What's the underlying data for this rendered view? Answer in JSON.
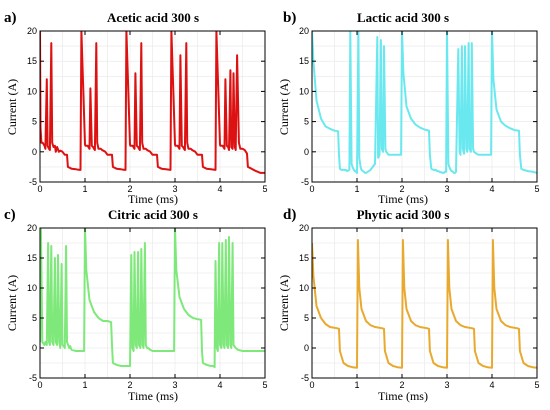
{
  "chart_data": [
    {
      "panel_label": "a)",
      "title": "Acetic acid 300 s",
      "type": "line",
      "color": "#dd1111",
      "xlabel": "Time (ms)",
      "ylabel": "Current (A)",
      "xlim": [
        0,
        5
      ],
      "ylim": [
        -5,
        20
      ],
      "xticks": [
        "0",
        "1",
        "2",
        "3",
        "4",
        "5"
      ],
      "yticks": [
        "-5",
        "0",
        "5",
        "10",
        "15",
        "20"
      ],
      "grid": true,
      "series": [
        {
          "x": [
            0.0,
            0.01,
            0.03,
            0.06,
            0.1,
            0.12,
            0.15,
            0.17,
            0.2,
            0.22,
            0.25,
            0.27,
            0.3,
            0.33,
            0.35,
            0.38,
            0.42,
            0.45,
            0.5,
            0.55,
            0.6,
            0.62,
            0.7,
            0.8,
            0.88,
            0.9,
            0.92,
            1.0,
            1.01,
            1.03,
            1.06,
            1.1,
            1.12,
            1.15,
            1.18,
            1.2,
            1.22,
            1.25,
            1.27,
            1.3,
            1.35,
            1.38,
            1.45,
            1.5,
            1.55,
            1.6,
            1.62,
            1.7,
            1.8,
            1.88,
            1.9,
            1.92,
            2.0,
            2.01,
            2.03,
            2.06,
            2.1,
            2.12,
            2.15,
            2.18,
            2.2,
            2.22,
            2.25,
            2.27,
            2.3,
            2.35,
            2.38,
            2.45,
            2.5,
            2.55,
            2.6,
            2.62,
            2.7,
            2.8,
            2.9,
            2.92,
            3.0,
            3.01,
            3.03,
            3.06,
            3.1,
            3.12,
            3.15,
            3.18,
            3.2,
            3.22,
            3.25,
            3.27,
            3.3,
            3.35,
            3.38,
            3.45,
            3.5,
            3.55,
            3.6,
            3.62,
            3.7,
            3.8,
            3.9,
            3.92,
            4.0,
            4.01,
            4.03,
            4.06,
            4.1,
            4.12,
            4.15,
            4.18,
            4.2,
            4.23,
            4.25,
            4.28,
            4.3,
            4.33,
            4.35,
            4.38,
            4.42,
            4.45,
            4.5,
            4.55,
            4.6,
            4.62,
            4.7,
            4.8,
            4.9,
            5.0
          ],
          "y": [
            20,
            4,
            1.5,
            1.5,
            1,
            0.5,
            12,
            1,
            0.5,
            0.3,
            18,
            1.5,
            0.8,
            1,
            0,
            0.8,
            0,
            0.2,
            0,
            -0.5,
            -0.5,
            -2.5,
            -2.8,
            -2.9,
            -3,
            -3,
            20,
            1.2,
            1,
            1,
            1,
            0.5,
            10.5,
            1,
            0.8,
            0.5,
            0.3,
            18,
            1.5,
            0.5,
            0.5,
            0.3,
            0,
            -0.5,
            -0.5,
            -0.5,
            -2.5,
            -2.8,
            -2.9,
            -3,
            -3,
            20,
            1.2,
            1,
            1,
            1,
            0.5,
            13,
            1,
            0.8,
            0.5,
            0.3,
            18,
            1.5,
            0.5,
            0.5,
            0.3,
            0,
            -0.5,
            -0.5,
            -0.5,
            -2.5,
            -2.8,
            -2.9,
            -3,
            20,
            1.2,
            1,
            1,
            1,
            0.5,
            16,
            1,
            0.8,
            0.5,
            0.3,
            18,
            1.5,
            0.5,
            0.5,
            0.3,
            0,
            -0.5,
            -0.5,
            -0.5,
            -2.5,
            -2.8,
            -2.9,
            -3,
            20,
            1.2,
            1,
            1,
            1,
            0.5,
            12,
            1,
            0.8,
            0.3,
            13.5,
            0.8,
            0.5,
            13,
            0.8,
            0.3,
            16,
            1.5,
            0.5,
            0.5,
            0.3,
            -0.3,
            -2.5,
            -2.8,
            -3.2,
            -3.5,
            -3.5
          ]
        }
      ]
    },
    {
      "panel_label": "b)",
      "title": "Lactic acid 300 s",
      "type": "line",
      "color": "#6ae8ef",
      "xlabel": "Time (ms)",
      "ylabel": "Current (A)",
      "xlim": [
        0,
        5
      ],
      "ylim": [
        -5,
        20
      ],
      "xticks": [
        "0",
        "1",
        "2",
        "3",
        "4",
        "5"
      ],
      "yticks": [
        "-5",
        "0",
        "5",
        "10",
        "15",
        "20"
      ],
      "grid": true,
      "series": [
        {
          "x": [
            0.0,
            0.03,
            0.1,
            0.2,
            0.3,
            0.4,
            0.5,
            0.58,
            0.6,
            0.62,
            0.65,
            0.7,
            0.75,
            0.78,
            0.8,
            0.83,
            0.85,
            0.88,
            0.9,
            0.93,
            0.95,
            0.98,
            1.0,
            1.03,
            1.05,
            1.08,
            1.1,
            1.13,
            1.15,
            1.18,
            1.2,
            1.3,
            1.4,
            1.45,
            1.47,
            1.5,
            1.53,
            1.55,
            1.58,
            1.6,
            1.63,
            1.65,
            1.7,
            1.8,
            1.9,
            1.98,
            2.0,
            2.03,
            2.1,
            2.2,
            2.3,
            2.4,
            2.5,
            2.6,
            2.62,
            2.65,
            2.7,
            2.75,
            2.78,
            2.8,
            2.83,
            2.85,
            2.88,
            2.9,
            2.93,
            2.95,
            2.98,
            3.0,
            3.03,
            3.05,
            3.08,
            3.1,
            3.13,
            3.15,
            3.18,
            3.2,
            3.25,
            3.28,
            3.3,
            3.33,
            3.35,
            3.38,
            3.4,
            3.43,
            3.45,
            3.48,
            3.5,
            3.53,
            3.55,
            3.58,
            3.6,
            3.65,
            3.7,
            3.8,
            3.9,
            3.98,
            4.0,
            4.03,
            4.1,
            4.2,
            4.3,
            4.4,
            4.5,
            4.6,
            4.62,
            4.65,
            4.7,
            4.8,
            4.9,
            5.0
          ],
          "y": [
            20,
            15,
            8.5,
            5.5,
            4.2,
            3.8,
            3.5,
            3.4,
            -0.5,
            -2.8,
            -3,
            -3,
            -3,
            -3.2,
            -3.1,
            -3,
            20,
            -2,
            -2.5,
            -3,
            -3.2,
            -3.3,
            -3.5,
            20,
            -1,
            -2.5,
            -3,
            -3.2,
            -3.3,
            -3.5,
            -3.5,
            -3,
            -2,
            19,
            -1,
            -0.5,
            18.5,
            0.5,
            0,
            17.5,
            0.5,
            0,
            -0.5,
            -0.5,
            -0.5,
            -0.5,
            20,
            13,
            7.5,
            5.5,
            4.5,
            4,
            3.7,
            3.5,
            -0.5,
            -2.8,
            -3,
            -3,
            -3.2,
            -3.2,
            -3.3,
            -3.4,
            -3.4,
            -3.5,
            -3.5,
            -3.3,
            -3.3,
            20,
            -2,
            -2.5,
            -3,
            -3.2,
            -3.3,
            -3.5,
            -3.5,
            -3.3,
            17,
            0,
            -0.5,
            17.5,
            0.5,
            -0.3,
            17.5,
            0.5,
            0,
            18,
            0.5,
            0,
            18,
            0.5,
            0,
            -0.3,
            -0.5,
            -0.5,
            -0.5,
            -0.5,
            20,
            12,
            7,
            5,
            4.3,
            3.9,
            3.6,
            3.5,
            -0.5,
            -2.8,
            -3,
            -3.2,
            -3.3,
            -3.5
          ]
        }
      ]
    },
    {
      "panel_label": "c)",
      "title": "Citric acid 300 s",
      "type": "line",
      "color": "#7ee87a",
      "xlabel": "Time (ms)",
      "ylabel": "Current (A)",
      "xlim": [
        0,
        5
      ],
      "ylim": [
        -5,
        20
      ],
      "xticks": [
        "0",
        "1",
        "2",
        "3",
        "4",
        "5"
      ],
      "yticks": [
        "-5",
        "0",
        "5",
        "10",
        "15",
        "20"
      ],
      "grid": true,
      "series": [
        {
          "x": [
            0.0,
            0.02,
            0.05,
            0.1,
            0.12,
            0.15,
            0.18,
            0.2,
            0.22,
            0.25,
            0.27,
            0.3,
            0.33,
            0.35,
            0.38,
            0.4,
            0.43,
            0.45,
            0.48,
            0.5,
            0.53,
            0.55,
            0.58,
            0.6,
            0.65,
            0.67,
            0.7,
            0.8,
            0.9,
            0.98,
            1.0,
            1.03,
            1.1,
            1.2,
            1.3,
            1.4,
            1.5,
            1.58,
            1.6,
            1.62,
            1.7,
            1.8,
            1.9,
            1.95,
            1.98,
            2.0,
            2.03,
            2.05,
            2.08,
            2.1,
            2.13,
            2.15,
            2.18,
            2.2,
            2.23,
            2.25,
            2.28,
            2.3,
            2.33,
            2.35,
            2.38,
            2.4,
            2.45,
            2.5,
            2.6,
            2.8,
            2.98,
            3.0,
            3.03,
            3.1,
            3.2,
            3.3,
            3.4,
            3.5,
            3.58,
            3.6,
            3.62,
            3.7,
            3.8,
            3.85,
            3.88,
            3.9,
            3.93,
            3.95,
            3.98,
            4.0,
            4.03,
            4.05,
            4.08,
            4.1,
            4.13,
            4.15,
            4.18,
            4.2,
            4.23,
            4.25,
            4.28,
            4.3,
            4.35,
            4.4,
            4.5,
            4.6,
            4.7,
            4.8,
            4.9,
            5.0
          ],
          "y": [
            1,
            20,
            1,
            0.5,
            1,
            0.5,
            17.5,
            1,
            0.5,
            17,
            1,
            0.5,
            15,
            1,
            0.5,
            15.5,
            1,
            0,
            14,
            0.5,
            0.3,
            0,
            17,
            1,
            0,
            0.3,
            -0.3,
            -0.5,
            -0.5,
            -0.5,
            20,
            13,
            8,
            6,
            5,
            4.5,
            4.5,
            4.3,
            0.5,
            -2.5,
            -2.8,
            -3,
            -3,
            -3,
            -3,
            -3,
            15.5,
            0,
            -0.5,
            16,
            0.5,
            0,
            16,
            0.5,
            0,
            16.5,
            0.5,
            0,
            17.5,
            0.5,
            0,
            0,
            -0.3,
            -0.5,
            -0.5,
            -0.5,
            -0.5,
            20,
            13,
            8.5,
            6.5,
            5.5,
            5,
            4.8,
            4.7,
            -0.5,
            -2.5,
            -2.8,
            -3,
            -3,
            -3.2,
            14.5,
            0,
            -0.5,
            17.5,
            0.5,
            0,
            17.5,
            0.5,
            0,
            18,
            0.5,
            0,
            18.5,
            0.5,
            0,
            17.5,
            0.5,
            0,
            -0.3,
            -0.5,
            -0.5,
            -0.5,
            -0.5,
            -0.5,
            -0.5
          ]
        }
      ]
    },
    {
      "panel_label": "d)",
      "title": "Phytic acid 300 s",
      "type": "line",
      "color": "#e8a92e",
      "xlabel": "Time (ms)",
      "ylabel": "Current (A)",
      "xlim": [
        0,
        5
      ],
      "ylim": [
        -5,
        20
      ],
      "xticks": [
        "0",
        "1",
        "2",
        "3",
        "4",
        "5"
      ],
      "yticks": [
        "-5",
        "0",
        "5",
        "10",
        "15",
        "20"
      ],
      "grid": true,
      "series": [
        {
          "x": [
            0.0,
            0.03,
            0.1,
            0.2,
            0.3,
            0.4,
            0.55,
            0.6,
            0.62,
            0.7,
            0.8,
            0.9,
            1.0,
            1.02,
            1.05,
            1.1,
            1.2,
            1.3,
            1.4,
            1.55,
            1.6,
            1.62,
            1.7,
            1.8,
            1.9,
            2.0,
            2.02,
            2.05,
            2.1,
            2.2,
            2.3,
            2.4,
            2.55,
            2.6,
            2.62,
            2.7,
            2.8,
            2.9,
            3.0,
            3.02,
            3.05,
            3.1,
            3.2,
            3.3,
            3.4,
            3.55,
            3.6,
            3.62,
            3.7,
            3.8,
            3.9,
            4.0,
            4.02,
            4.05,
            4.1,
            4.2,
            4.3,
            4.4,
            4.55,
            4.6,
            4.62,
            4.7,
            4.8,
            4.9,
            5.0
          ],
          "y": [
            17.5,
            12,
            7,
            5,
            4,
            3.5,
            3.3,
            3.2,
            -0.5,
            -2.5,
            -3,
            -3.2,
            -3.3,
            18,
            10,
            6.5,
            4.5,
            3.8,
            3.5,
            3.3,
            3.2,
            -0.5,
            -2.5,
            -3,
            -3.2,
            -3.3,
            18,
            10,
            6.5,
            4.5,
            3.8,
            3.5,
            3.3,
            3.2,
            -0.5,
            -2.5,
            -3,
            -3.2,
            -3.3,
            18,
            10,
            6.5,
            4.5,
            3.8,
            3.5,
            3.3,
            3.2,
            -0.5,
            -2.5,
            -3,
            -3.2,
            -3.3,
            18,
            10,
            6.5,
            4.5,
            3.8,
            3.5,
            3.3,
            3.2,
            -0.5,
            -2.5,
            -3,
            -3.2,
            -3.3
          ]
        }
      ]
    }
  ]
}
